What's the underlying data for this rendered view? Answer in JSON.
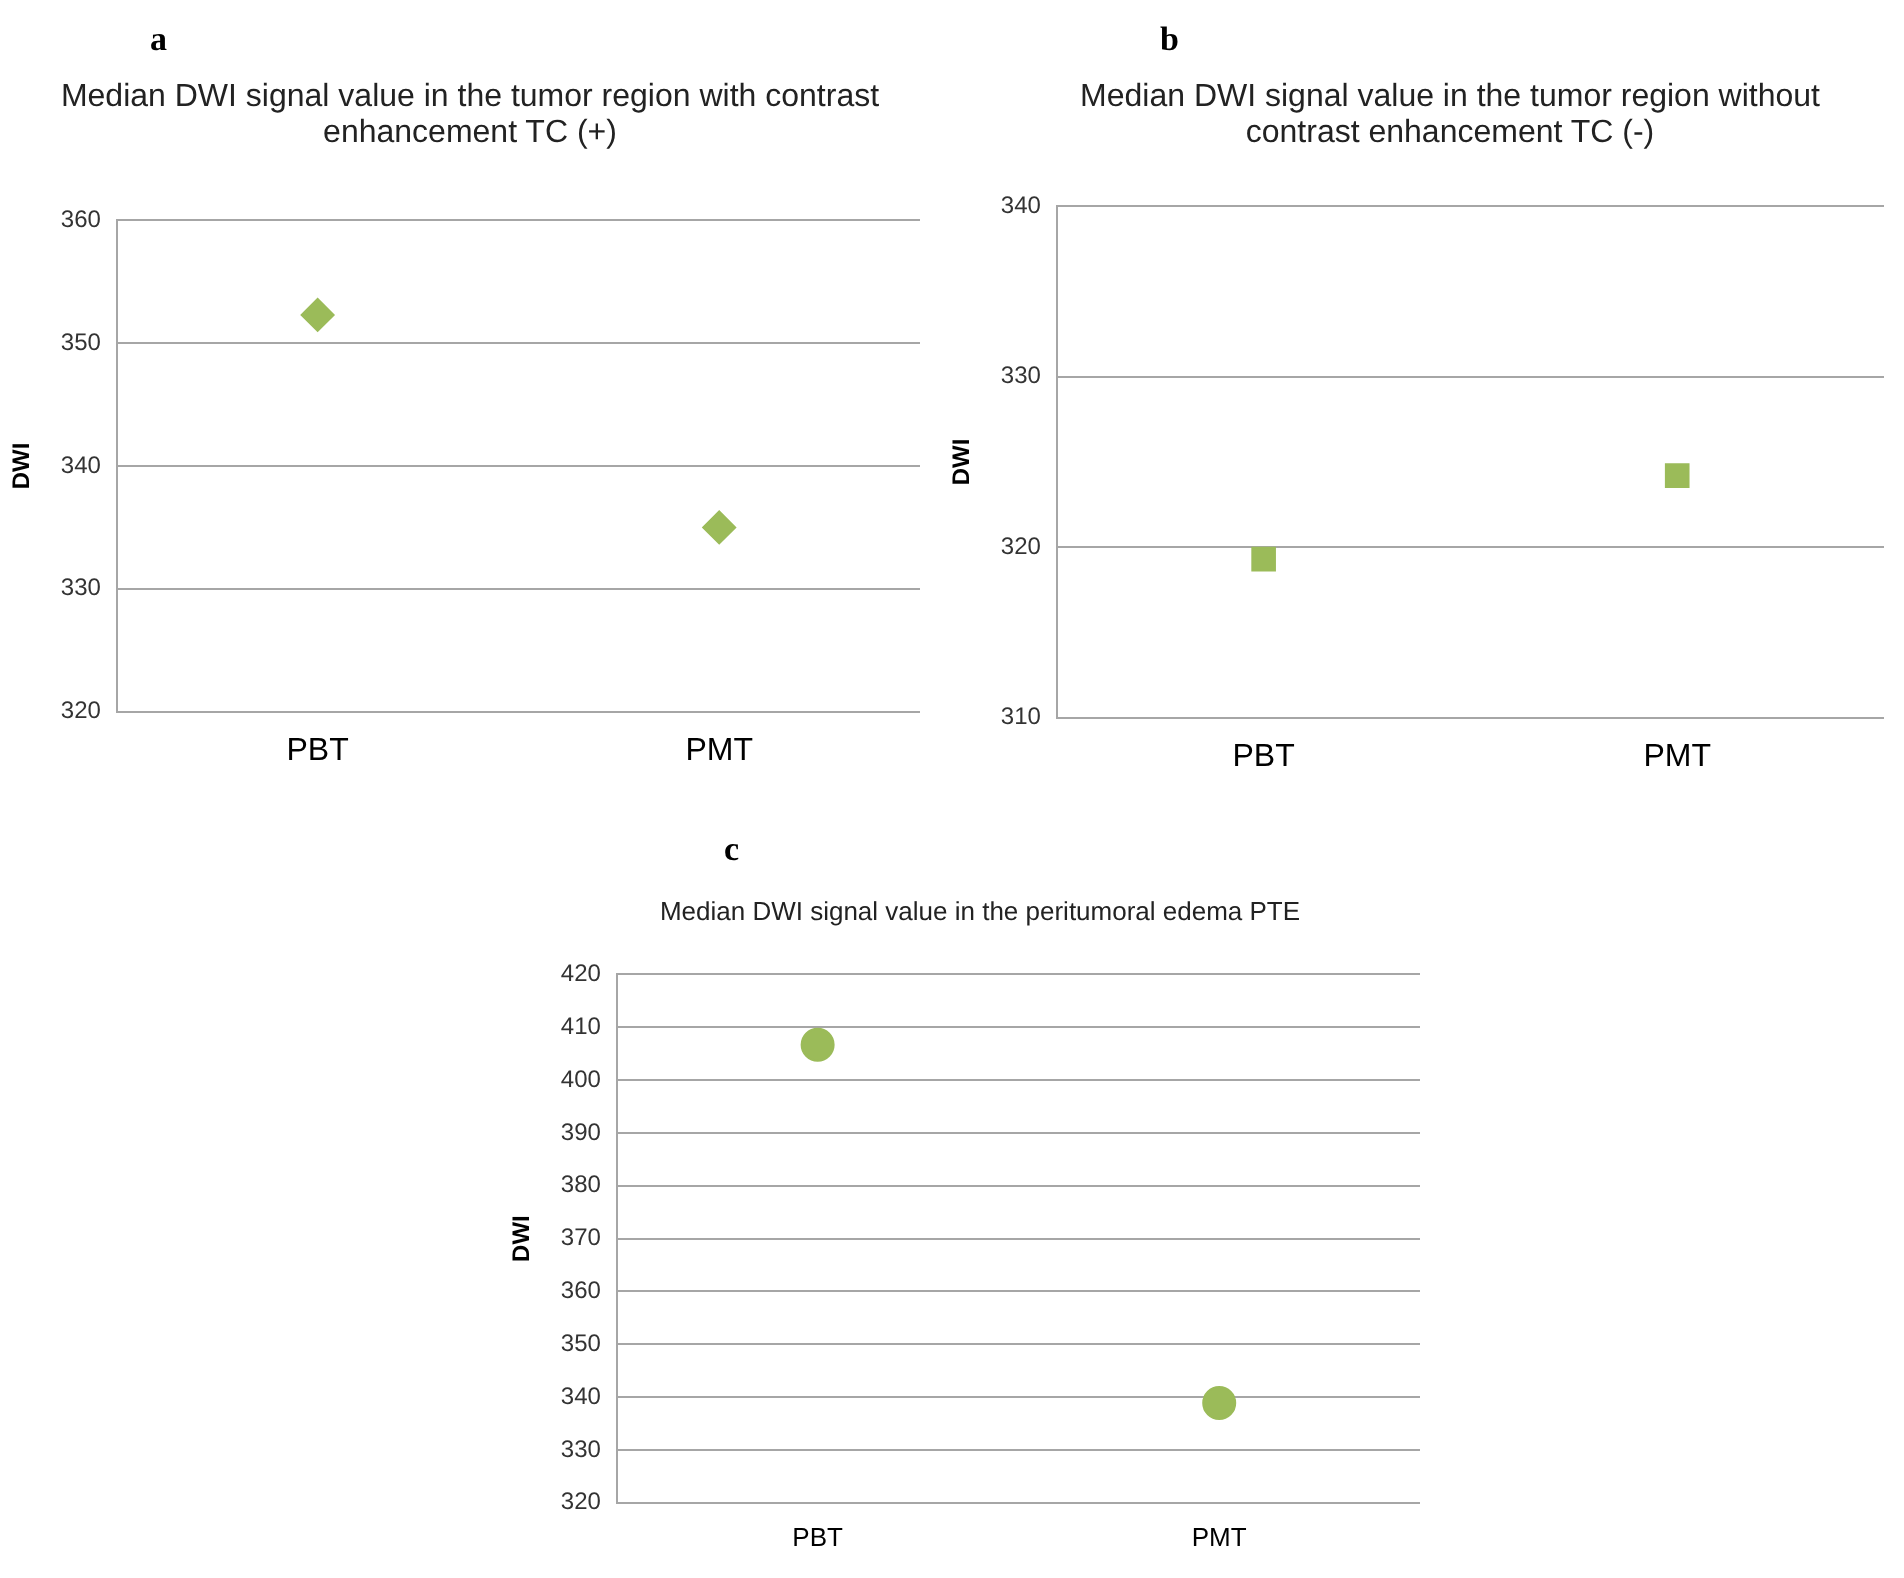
{
  "chart_data": [
    {
      "type": "scatter",
      "title": "Median DWI signal value in the tumor region with contrast enhancement  TC (+)",
      "annotations": [
        "a"
      ],
      "ylabel": "DWI",
      "categories": [
        "PBT",
        "PMT"
      ],
      "series": [
        {
          "color": "#9bbb59",
          "values": [
            352.3,
            335
          ]
        }
      ],
      "marker": "diamond",
      "ylim": [
        320,
        360
      ],
      "yticks": [
        320,
        330,
        340,
        350,
        360
      ],
      "grid": "y",
      "legend": false
    },
    {
      "type": "scatter",
      "title": "Median DWI signal value in the tumor region without contrast enhancement  TC (-)",
      "annotations": [
        "b"
      ],
      "ylabel": "DWI",
      "categories": [
        "PBT",
        "PMT"
      ],
      "series": [
        {
          "color": "#9bbb59",
          "values": [
            319.3,
            324.2
          ]
        }
      ],
      "marker": "square",
      "ylim": [
        310,
        340
      ],
      "yticks": [
        310,
        320,
        330,
        340
      ],
      "grid": "y",
      "legend": false
    },
    {
      "type": "scatter",
      "title": "Median DWI signal value in the peritumoral edema  PTE",
      "annotations": [
        "c"
      ],
      "ylabel": "DWI",
      "categories": [
        "PBT",
        "PMT"
      ],
      "series": [
        {
          "color": "#9bbb59",
          "values": [
            406.7,
            338.9
          ]
        }
      ],
      "marker": "circle",
      "ylim": [
        320,
        420
      ],
      "yticks": [
        320,
        330,
        340,
        350,
        360,
        370,
        380,
        390,
        400,
        410,
        420
      ],
      "grid": "y",
      "legend": false
    }
  ]
}
